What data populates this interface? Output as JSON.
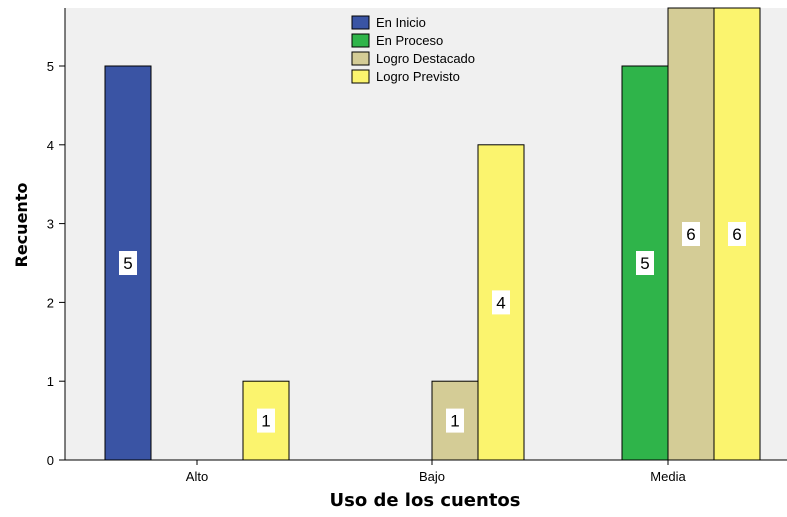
{
  "chart_data": {
    "type": "bar",
    "title": "",
    "xlabel": "Uso de los cuentos",
    "ylabel": "Recuento",
    "categories": [
      "Alto",
      "Bajo",
      "Media"
    ],
    "series": [
      {
        "name": "En Inicio",
        "color": "#3a54a4",
        "values": [
          5,
          0,
          0
        ]
      },
      {
        "name": "En Proceso",
        "color": "#2fb44a",
        "values": [
          0,
          0,
          5
        ]
      },
      {
        "name": "Logro Destacado",
        "color": "#d4cc96",
        "values": [
          0,
          1,
          6
        ]
      },
      {
        "name": "Logro Previsto",
        "color": "#fbf46e",
        "values": [
          1,
          4,
          6
        ]
      }
    ],
    "yticks": [
      "0",
      "1",
      "2",
      "3",
      "4",
      "5"
    ],
    "ylim": [
      0,
      5.7
    ],
    "grid": false,
    "legend": "top-center",
    "background": "#f0f0f0"
  }
}
